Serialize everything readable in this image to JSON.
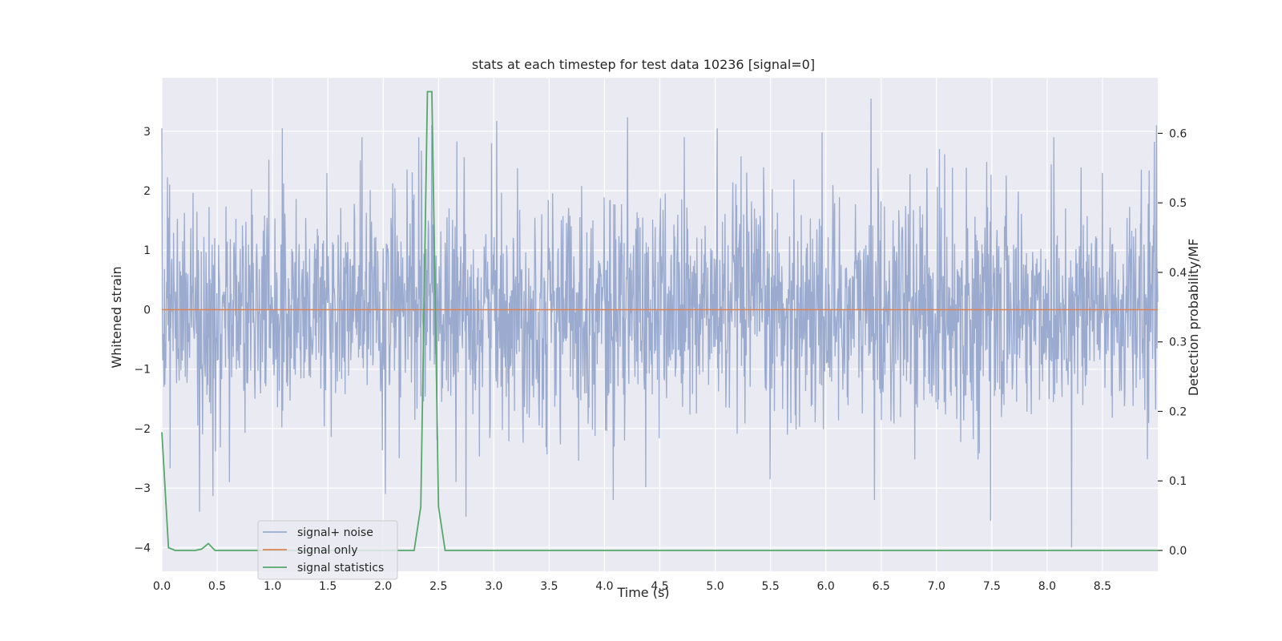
{
  "chart_data": {
    "type": "line",
    "title": "stats at each timestep for test data 10236 [signal=0]",
    "xlabel": "Time (s)",
    "ylabel": "Whitened strain",
    "y2label": "Detection probability/MF",
    "xlim": [
      0,
      9.0
    ],
    "ylim": [
      -4.4,
      3.9
    ],
    "y2lim": [
      -0.03,
      0.68
    ],
    "xticks": [
      0.0,
      0.5,
      1.0,
      1.5,
      2.0,
      2.5,
      3.0,
      3.5,
      4.0,
      4.5,
      5.0,
      5.5,
      6.0,
      6.5,
      7.0,
      7.5,
      8.0,
      8.5
    ],
    "xtick_labels": [
      "0.0",
      "0.5",
      "1.0",
      "1.5",
      "2.0",
      "2.5",
      "3.0",
      "3.5",
      "4.0",
      "4.5",
      "5.0",
      "5.5",
      "6.0",
      "6.5",
      "7.0",
      "7.5",
      "8.0",
      "8.5"
    ],
    "yticks": [
      3,
      2,
      1,
      0,
      -1,
      -2,
      -3,
      -4
    ],
    "ytick_labels": [
      "3",
      "2",
      "1",
      "0",
      "−1",
      "−2",
      "−3",
      "−4"
    ],
    "y2ticks": [
      0.6,
      0.5,
      0.4,
      0.3,
      0.2,
      0.1,
      0.0
    ],
    "y2tick_labels": [
      "0.6",
      "0.5",
      "0.4",
      "0.3",
      "0.2",
      "0.1",
      "0.0"
    ],
    "grid": true,
    "legend_position": "lower-left",
    "colors": {
      "signal_noise": "#9aabcf",
      "signal_only": "#dd8452",
      "signal_statistics": "#55a868",
      "plot_background": "#eaeaf2",
      "grid": "#ffffff"
    },
    "series": [
      {
        "name": "signal+ noise",
        "axis": "left",
        "description_values": "dense noise trace, approx. +/-1.5 typical with spikes reaching about 3.5 and -4.0",
        "x": [
          0.0,
          0.02,
          0.34,
          0.61,
          1.09,
          1.81,
          2.02,
          2.32,
          2.44,
          2.66,
          2.98,
          4.08,
          4.72,
          5.02,
          6.41,
          6.44,
          7.49,
          8.06,
          8.22,
          8.5,
          8.99
        ],
        "values": [
          3.05,
          -1.3,
          -3.4,
          -2.9,
          3.05,
          2.9,
          -3.1,
          2.9,
          3.1,
          -2.9,
          2.8,
          -3.2,
          2.9,
          3.05,
          3.55,
          -3.2,
          -3.55,
          2.9,
          -4.0,
          2.3,
          3.1
        ]
      },
      {
        "name": "signal only",
        "axis": "left",
        "x": [
          0.0,
          9.0
        ],
        "values": [
          0,
          0
        ]
      },
      {
        "name": "signal statistics",
        "axis": "right",
        "x": [
          0.0,
          0.06,
          0.12,
          0.18,
          0.24,
          0.3,
          0.36,
          0.42,
          0.48,
          0.54,
          0.6,
          2.16,
          2.22,
          2.28,
          2.34,
          2.4,
          2.44,
          2.5,
          2.56,
          2.62,
          9.0
        ],
        "values": [
          0.17,
          0.004,
          0.0,
          0.0,
          0.0,
          0.0,
          0.002,
          0.01,
          0.0,
          0.0,
          0.0,
          0.0,
          0.0,
          0.0,
          0.063,
          0.66,
          0.66,
          0.063,
          0.0,
          0.0,
          0.0
        ]
      }
    ]
  }
}
